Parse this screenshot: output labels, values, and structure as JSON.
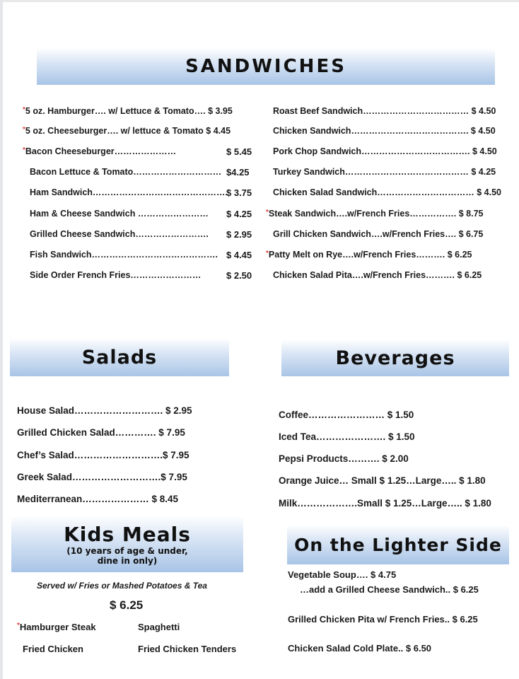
{
  "sandwiches": {
    "title": "SANDWICHES",
    "left": [
      {
        "star": true,
        "name": "5 oz. Hamburger…. w/ Lettuce & Tomato….",
        "price": "$ 3.95"
      },
      {
        "star": true,
        "name": "5 oz. Cheeseburger…. w/ lettuce & Tomato",
        "price": "$ 4.45"
      },
      {
        "star": true,
        "name": "Bacon Cheeseburger…………………",
        "price": "$ 5.45"
      },
      {
        "star": false,
        "name": "Bacon Lettuce & Tomato…………………………",
        "price": "$4.25"
      },
      {
        "star": false,
        "name": "Ham Sandwich……………………………………….",
        "price": "$ 3.75"
      },
      {
        "star": false,
        "name": "Ham & Cheese Sandwich ……………………",
        "price": "$ 4.25"
      },
      {
        "star": false,
        "name": "Grilled Cheese Sandwich…………………….",
        "price": "$ 2.95"
      },
      {
        "star": false,
        "name": "Fish Sandwich…………………………………….",
        "price": "$ 4.45"
      },
      {
        "star": false,
        "name": "Side Order French Fries……………………",
        "price": "$ 2.50"
      }
    ],
    "right": [
      {
        "star": false,
        "name": "Roast Beef Sandwich………………………………",
        "price": "$ 4.50"
      },
      {
        "star": false,
        "name": "Chicken Sandwich………………………………….",
        "price": "$ 4.50"
      },
      {
        "star": false,
        "name": "Pork Chop Sandwich……………………………….",
        "price": "$ 4.50"
      },
      {
        "star": false,
        "name": "Turkey Sandwich……………………………………",
        "price": "$ 4.25"
      },
      {
        "star": false,
        "name": "Chicken Salad Sandwich……………………………",
        "price": "$ 4.50"
      },
      {
        "star": true,
        "name": "Steak Sandwich….w/French Fries…………….",
        "price": "$ 8.75"
      },
      {
        "star": false,
        "name": "Grill Chicken Sandwich….w/French Fries….",
        "price": "$ 6.75"
      },
      {
        "star": true,
        "name": "Patty Melt on Rye….w/French Fries……….",
        "price": "$ 6.25"
      },
      {
        "star": false,
        "name": "Chicken Salad Pita….w/French Fries……….",
        "price": "$ 6.25"
      }
    ]
  },
  "salads": {
    "title": "Salads",
    "items": [
      "House Salad………………………. $ 2.95",
      "Grilled Chicken Salad…………. $ 7.95",
      "Chef’s Salad……………………….$ 7.95",
      "Greek Salad……………………….$ 7.95",
      "Mediterranean………………… $ 8.45"
    ]
  },
  "beverages": {
    "title": "Beverages",
    "items": [
      "Coffee…………………… $ 1.50",
      "Iced Tea…………………. $ 1.50",
      "Pepsi Products………. $ 2.00",
      "Orange Juice… Small $ 1.25…Large…..  $ 1.80",
      "Milk……………….Small $ 1.25…Large….. $ 1.80"
    ]
  },
  "kids": {
    "title": "Kids Meals",
    "subtitle1": "(10 years of age & under,",
    "subtitle2": "dine in only)",
    "served": "Served w/ Fries or Mashed Potatoes & Tea",
    "price": "$ 6.25",
    "items": [
      {
        "star": true,
        "name": "Hamburger Steak"
      },
      {
        "star": false,
        "name": "Spaghetti"
      },
      {
        "star": false,
        "name": "Fried Chicken"
      },
      {
        "star": false,
        "name": "Fried Chicken Tenders"
      }
    ]
  },
  "lighter": {
    "title": "On the Lighter Side",
    "items": [
      "Vegetable Soup…. $ 4.75",
      "…add a Grilled Cheese Sandwich.. $ 6.25",
      "Grilled Chicken Pita w/ French Fries.. $ 6.25",
      "Chicken Salad Cold Plate.. $ 6.50"
    ]
  },
  "colors": {
    "header_gradient": "#a8c4e6",
    "star": "#e04040"
  }
}
